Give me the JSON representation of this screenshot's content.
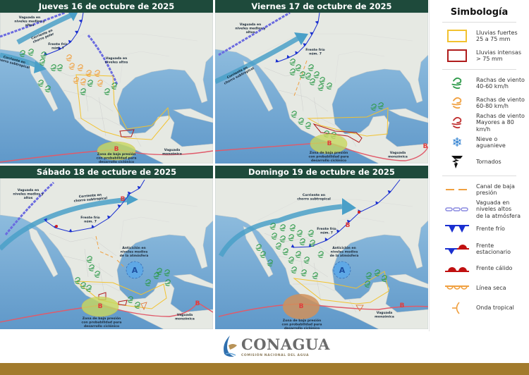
{
  "panels": [
    {
      "title": "Jueves 16 de octubre de 2025",
      "labels": {
        "trough_mid_high": "Vaguada en\nniveles medios y\naltos",
        "polar_jet": "Corriente en\nchorro polar",
        "cold_front": "Frente frío\nnúm. 7",
        "subtropical_jet": "Corriente en\nchorro subtropical",
        "trough_high": "Vaguada en\nniveles altos",
        "low_zone": "Zona de baja presión\ncon probabilidad para\ndesarrollo ciclónico",
        "monsoon": "Vaguada\nmonzónica",
        "low_1": "B"
      }
    },
    {
      "title": "Viernes 17 de octubre de 2025",
      "labels": {
        "trough_mid_high": "Vaguada en\nniveles medios y\naltos",
        "subtropical_jet": "Corriente en\nchorro subtropical",
        "cold_front": "Frente frío\nnúm. 7",
        "low_zone": "Zona de baja presión\ncon probabilidad para\ndesarrollo ciclónico",
        "monsoon": "Vaguada\nmonzónica",
        "low_1": "B",
        "low_2": "B"
      }
    },
    {
      "title": "Sábado 18 de octubre de 2025",
      "labels": {
        "trough_mid_high": "Vaguada en\nniveles medios y\naltos",
        "subtropical_jet": "Corriente en\nchorro subtropical",
        "cold_front": "Frente frío\nnúm. 7",
        "anticyclone": "Anticiclón en\nniveles medios\nde la atmósfera",
        "high": "A",
        "low_zone": "Zona de baja presión\ncon probabilidad para\ndesarrollo ciclónico",
        "monsoon": "Vaguada\nmonzónica",
        "low_1": "B",
        "low_2": "B",
        "low_3": "B"
      }
    },
    {
      "title": "Domingo 19 de octubre de 2025",
      "labels": {
        "subtropical_jet": "Corriente en\nchorro subtropical",
        "cold_front": "Frente frío\nnúm. 7",
        "anticyclone": "Anticiclón en\nniveles medios\nde la atmósfera",
        "high": "A",
        "low_zone": "Zona de baja presión\ncon probabilidad para\ndesarrollo ciclónico",
        "monsoon": "Vaguada\nmonzónica",
        "low_1": "B",
        "low_2": "B",
        "low_3": "B"
      }
    }
  ],
  "legend": {
    "title": "Simbología",
    "items": [
      {
        "label": "Lluvias fuertes\n25 a 75 mm",
        "icon": "yellow-rectangle",
        "color": "#f2c230"
      },
      {
        "label": "Lluvias intensas\n> 75 mm",
        "icon": "red-rectangle",
        "color": "#b01c1c"
      },
      {
        "label": "Rachas de viento\n40-60 km/h",
        "icon": "wind-icon",
        "color": "#2e9a4a"
      },
      {
        "label": "Rachas de viento\n60-80 km/h",
        "icon": "wind-icon",
        "color": "#f0a040"
      },
      {
        "label": "Rachas de viento\nMayores a 80 km/h",
        "icon": "wind-icon",
        "color": "#c03030"
      },
      {
        "label": "Nieve o\naguanieve",
        "icon": "snowflake-icon",
        "color": "#2d7fd0"
      },
      {
        "label": "Tornados",
        "icon": "tornado-icon",
        "color": "#111111"
      },
      {
        "label": "Canal de baja\npresión",
        "icon": "dashed-line-icon",
        "color": "#f0a040"
      },
      {
        "label": "Vaguada en\nniveles altos\nde la atmósfera",
        "icon": "chain-line-icon",
        "color": "#8b8be0"
      },
      {
        "label": "Frente frío",
        "icon": "cold-front-icon",
        "color": "#1a2fd0"
      },
      {
        "label": "Frente\nestacionario",
        "icon": "stationary-front-icon",
        "color": "#c01010"
      },
      {
        "label": "Frente cálido",
        "icon": "warm-front-icon",
        "color": "#c01010"
      },
      {
        "label": "Línea seca",
        "icon": "dry-line-icon",
        "color": "#f0a040"
      },
      {
        "label": "Onda tropical",
        "icon": "tropical-wave-icon",
        "color": "#f0a040"
      }
    ]
  },
  "footer": {
    "brand": "CONAGUA",
    "subtitle": "COMISIÓN NACIONAL DEL AGUA",
    "band_color": "#a27b2d"
  }
}
